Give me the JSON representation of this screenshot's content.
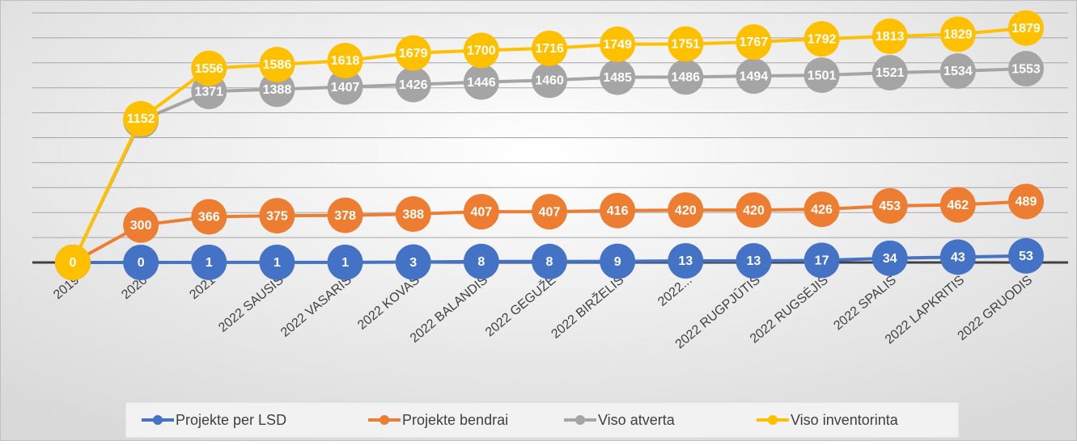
{
  "chart_data": {
    "type": "line",
    "categories": [
      "2019",
      "2020",
      "2021",
      "2022 SAUSIS",
      "2022 VASARIS",
      "2022 KOVAS",
      "2022 BALANDIS",
      "2022 GEGUŽĖ",
      "2022 BIRŽELIS",
      "2022...",
      "2022 RUGPJŪTIS",
      "2022 RUGSĖJIS",
      "2022 SPALIS",
      "2022 LAPKRITIS",
      "2022 GRUODIS"
    ],
    "series": [
      {
        "name": "Projekte per LSD",
        "color": "#4472c4",
        "values": [
          0,
          0,
          1,
          1,
          1,
          3,
          8,
          8,
          9,
          13,
          13,
          17,
          34,
          43,
          53
        ]
      },
      {
        "name": "Projekte bendrai",
        "color": "#ed7d31",
        "values": [
          0,
          300,
          366,
          375,
          378,
          388,
          407,
          407,
          416,
          420,
          420,
          426,
          453,
          462,
          489
        ]
      },
      {
        "name": "Viso atverta",
        "color": "#a5a5a5",
        "values": [
          0,
          1138,
          1371,
          1388,
          1407,
          1426,
          1446,
          1460,
          1485,
          1486,
          1494,
          1501,
          1521,
          1534,
          1553
        ]
      },
      {
        "name": "Viso inventorinta",
        "color": "#ffc000",
        "values": [
          0,
          1152,
          1556,
          1586,
          1618,
          1679,
          1700,
          1716,
          1749,
          1751,
          1767,
          1792,
          1813,
          1829,
          1879
        ]
      }
    ],
    "ylim": [
      0,
      2000
    ],
    "yticks": [
      0,
      200,
      400,
      600,
      800,
      1000,
      1200,
      1400,
      1600,
      1800,
      2000
    ],
    "grid": true,
    "legend": "bottom"
  }
}
